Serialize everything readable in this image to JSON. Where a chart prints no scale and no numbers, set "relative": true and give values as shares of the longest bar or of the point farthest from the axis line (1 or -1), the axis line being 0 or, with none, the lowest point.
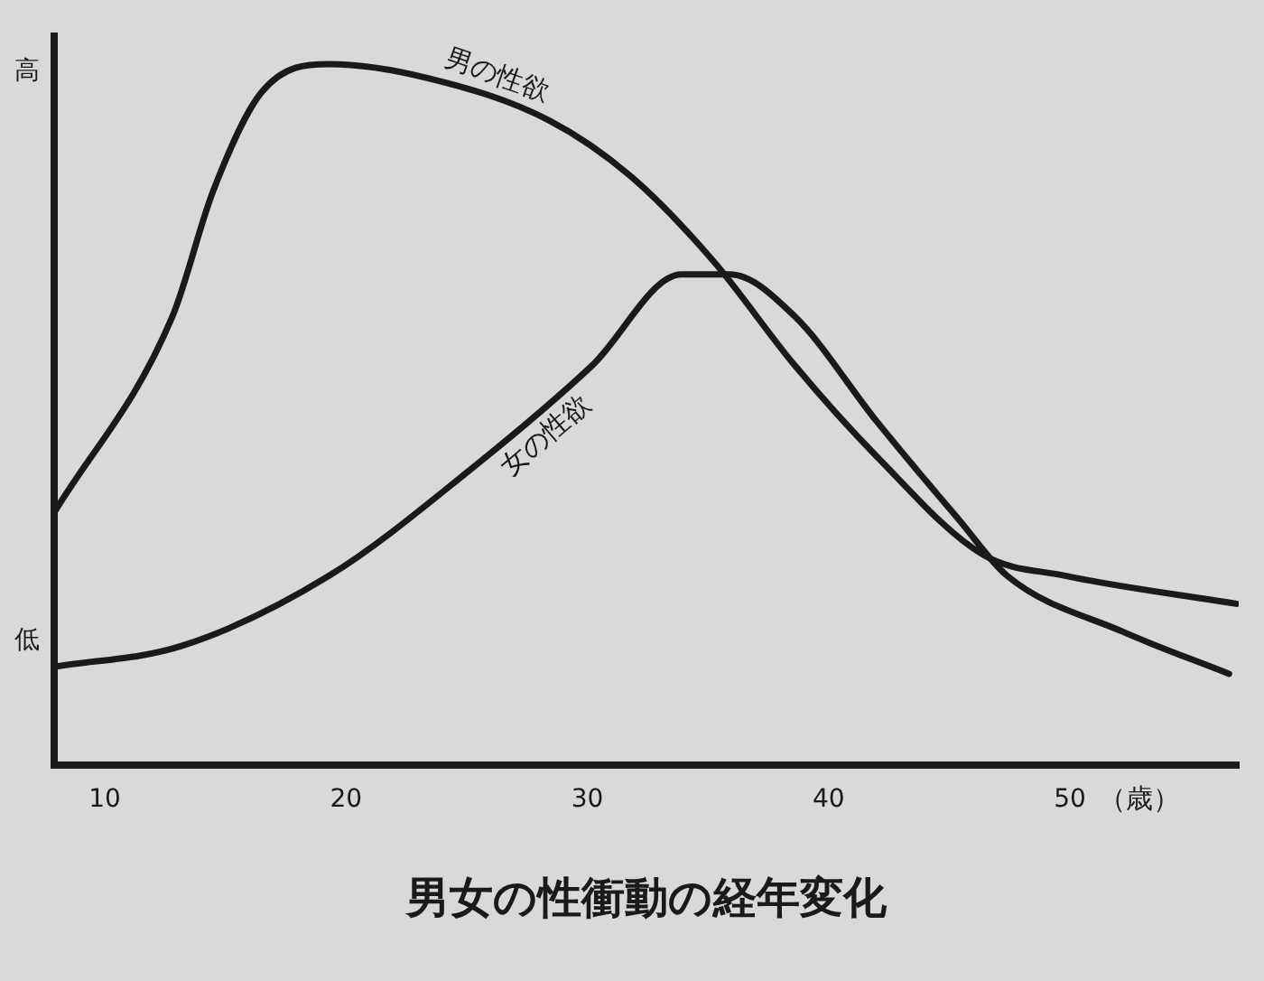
{
  "chart_data": {
    "type": "line",
    "title": "男女の性衝動の経年変化",
    "xlabel": "（歳）",
    "relative": true,
    "xlim": [
      7.9,
      57
    ],
    "xticks": [
      10,
      20,
      30,
      40,
      50
    ],
    "grid": false,
    "legend": false,
    "marker": "none",
    "line_style": "solid",
    "annotations": [
      "高",
      "低"
    ],
    "series": [
      {
        "name": "男の性欲",
        "color": "#1a1a1a",
        "x": [
          7.9,
          12.8,
          14.5,
          16.5,
          19.3,
          23.4,
          28.4,
          31.8,
          35.2,
          38.6,
          42.0,
          46.4,
          49.8,
          56.9
        ],
        "values": [
          0.36,
          0.64,
          0.82,
          0.96,
          1.0,
          0.98,
          0.92,
          0.84,
          0.72,
          0.57,
          0.44,
          0.3,
          0.27,
          0.23
        ]
      },
      {
        "name": "女の性欲",
        "color": "#1a1a1a",
        "x": [
          7.9,
          13.2,
          19.3,
          25.1,
          30.2,
          33.9,
          35.9,
          38.6,
          42.0,
          45.4,
          47.4,
          52.2,
          56.6
        ],
        "values": [
          0.14,
          0.17,
          0.27,
          0.42,
          0.57,
          0.7,
          0.7,
          0.64,
          0.49,
          0.35,
          0.27,
          0.19,
          0.13
        ]
      }
    ]
  }
}
